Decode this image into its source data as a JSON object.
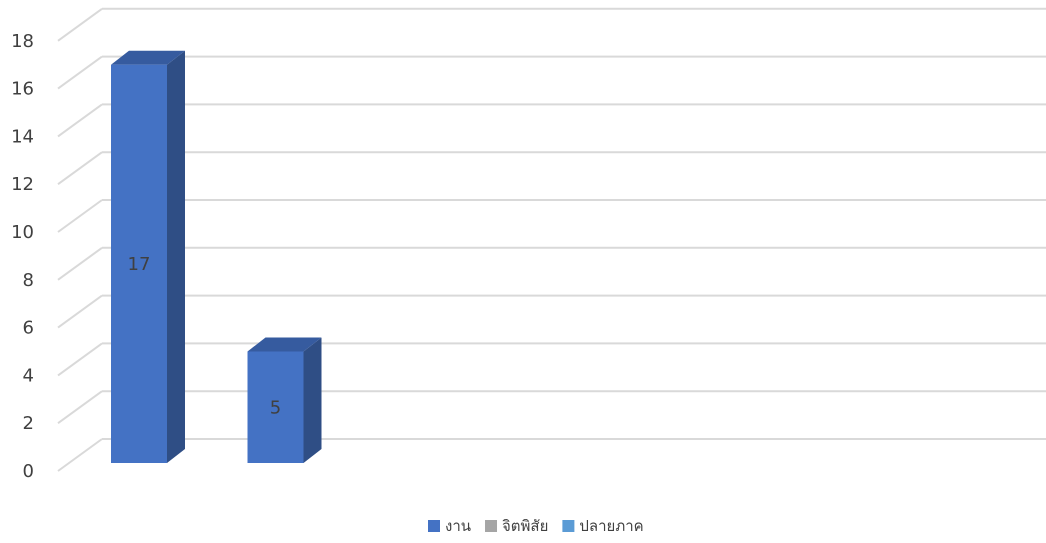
{
  "chart_data": {
    "type": "bar",
    "view": "3d-column",
    "categories": [
      "",
      "",
      "",
      "",
      "",
      "",
      ""
    ],
    "series": [
      {
        "name": "งาน",
        "values": [
          17,
          5,
          null,
          null,
          null,
          null,
          null
        ],
        "color": "#4472C4"
      },
      {
        "name": "จิตพิสัย",
        "values": [
          null,
          null,
          null,
          null,
          null,
          null,
          null
        ],
        "color": "#A5A5A5"
      },
      {
        "name": "ปลายภาค",
        "values": [
          null,
          null,
          null,
          null,
          null,
          null,
          null
        ],
        "color": "#5B9BD5"
      }
    ],
    "data_labels": [
      "17",
      "5"
    ],
    "ylim": [
      0,
      18
    ],
    "yticks": [
      0,
      2,
      4,
      6,
      8,
      10,
      12,
      14,
      16,
      18
    ],
    "ytick_labels": [
      "0",
      "2",
      "4",
      "6",
      "8",
      "10",
      "12",
      "14",
      "16",
      "18"
    ],
    "grid": true,
    "legend_position": "bottom",
    "colors": {
      "gridline": "#D9D9D9",
      "bar_front": "#4472C4",
      "bar_side": "#2F4E85",
      "bar_top": "#365B9F",
      "text": "#404040"
    }
  }
}
